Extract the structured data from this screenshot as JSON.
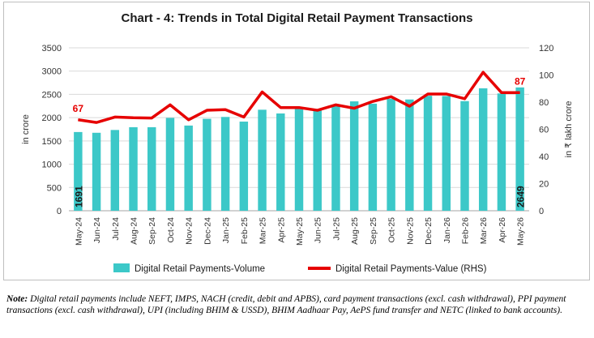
{
  "chart_data": {
    "type": "bar+line",
    "title": "Chart - 4: Trends in Total Digital Retail Payment Transactions",
    "categories": [
      "May-24",
      "Jun-24",
      "Jul-24",
      "Aug-24",
      "Sep-24",
      "Oct-24",
      "Nov-24",
      "Dec-24",
      "Jan-25",
      "Feb-25",
      "Mar-25",
      "Apr-25",
      "May-25",
      "Jun-25",
      "Jul-25",
      "Aug-25",
      "Sep-25",
      "Oct-25",
      "Nov-25",
      "Dec-25",
      "Jan-26",
      "Feb-26",
      "Mar-26",
      "Apr-26",
      "May-26"
    ],
    "series": [
      {
        "name": "Digital Retail Payments-Volume",
        "type": "bar",
        "axis": "left",
        "color": "#3cc8c8",
        "values": [
          1691,
          1675,
          1735,
          1795,
          1795,
          1995,
          1830,
          1975,
          2015,
          1915,
          2170,
          2090,
          2185,
          2155,
          2245,
          2350,
          2300,
          2405,
          2390,
          2470,
          2465,
          2355,
          2630,
          2520,
          2649
        ]
      },
      {
        "name": "Digital Retail Payments-Value (RHS)",
        "type": "line",
        "axis": "right",
        "color": "#e60000",
        "values": [
          67,
          65,
          69,
          68.5,
          68.3,
          78,
          67,
          74,
          74.5,
          69,
          87.5,
          76,
          76,
          74,
          78,
          75.5,
          80.5,
          84,
          77,
          86,
          86,
          82.5,
          102,
          87,
          87
        ]
      }
    ],
    "left_axis": {
      "label": "in crore",
      "ticks": [
        0,
        500,
        1000,
        1500,
        2000,
        2500,
        3000,
        3500
      ],
      "range": [
        0,
        3500
      ]
    },
    "right_axis": {
      "label": "in ₹ lakh crore",
      "ticks": [
        0,
        20,
        40,
        60,
        80,
        100,
        120
      ],
      "range": [
        0,
        120
      ]
    },
    "bar_labels": [
      {
        "index": 0,
        "text": "1691"
      },
      {
        "index": 24,
        "text": "2649"
      }
    ],
    "line_labels": [
      {
        "index": 0,
        "text": "67"
      },
      {
        "index": 24,
        "text": "87"
      }
    ],
    "legend_position": "bottom",
    "grid": true
  },
  "note": {
    "label": "Note:",
    "text": " Digital retail payments include NEFT, IMPS, NACH (credit, debit and APBS), card payment transactions (excl. cash withdrawal), PPI payment transactions (excl. cash withdrawal), UPI (including BHIM & USSD), BHIM Aadhaar Pay, AePS fund transfer and NETC (linked to bank accounts)."
  }
}
